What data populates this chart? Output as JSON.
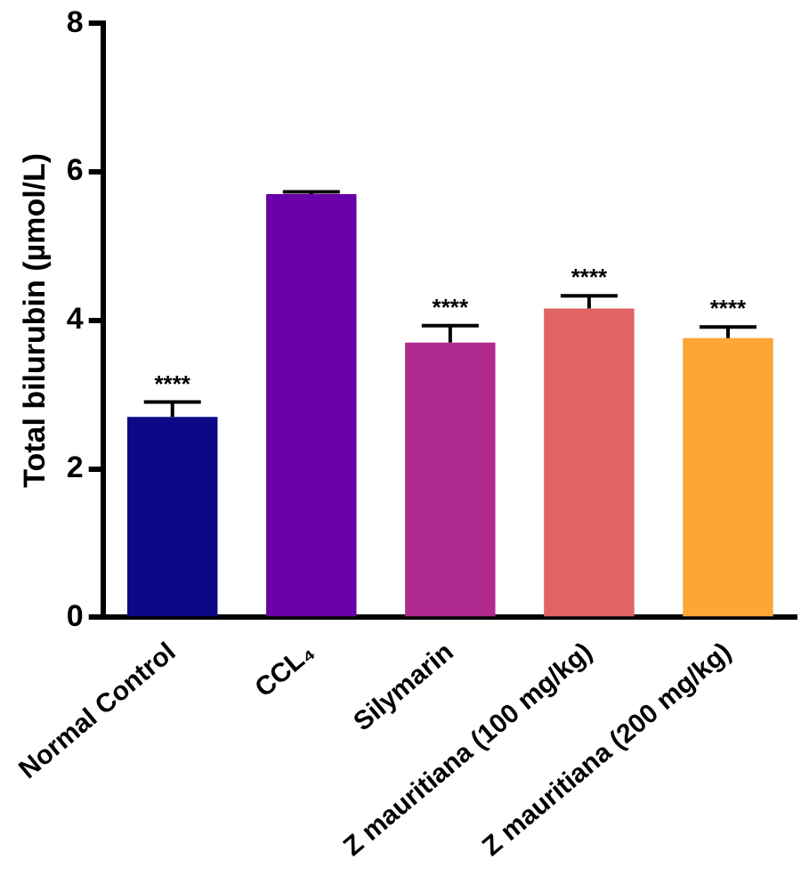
{
  "chart_data": {
    "type": "bar",
    "ylabel": "Total bilurubin (µmol/L)",
    "categories": [
      "Normal Control",
      "CCL₄",
      "Silymarin",
      "Z mauritiana (100 mg/kg)",
      "Z mauritiana (200 mg/kg)"
    ],
    "values": [
      2.7,
      5.7,
      3.7,
      4.16,
      3.76
    ],
    "errors": [
      0.2,
      0.03,
      0.23,
      0.17,
      0.15
    ],
    "colors": [
      "#0d0887",
      "#6a00a8",
      "#b12a90",
      "#e16462",
      "#fca636"
    ],
    "ylim": [
      0,
      8
    ],
    "yticks": [
      0,
      2,
      4,
      6,
      8
    ],
    "grid": false,
    "legend": false,
    "annotations": [
      {
        "text": "****",
        "x": "Normal Control",
        "y": 2.9
      },
      {
        "text": "****",
        "x": "Silymarin",
        "y": 3.93
      },
      {
        "text": "****",
        "x": "Z mauritiana (100 mg/kg)",
        "y": 4.33
      },
      {
        "text": "****",
        "x": "Z mauritiana (200 mg/kg)",
        "y": 3.91
      }
    ]
  }
}
